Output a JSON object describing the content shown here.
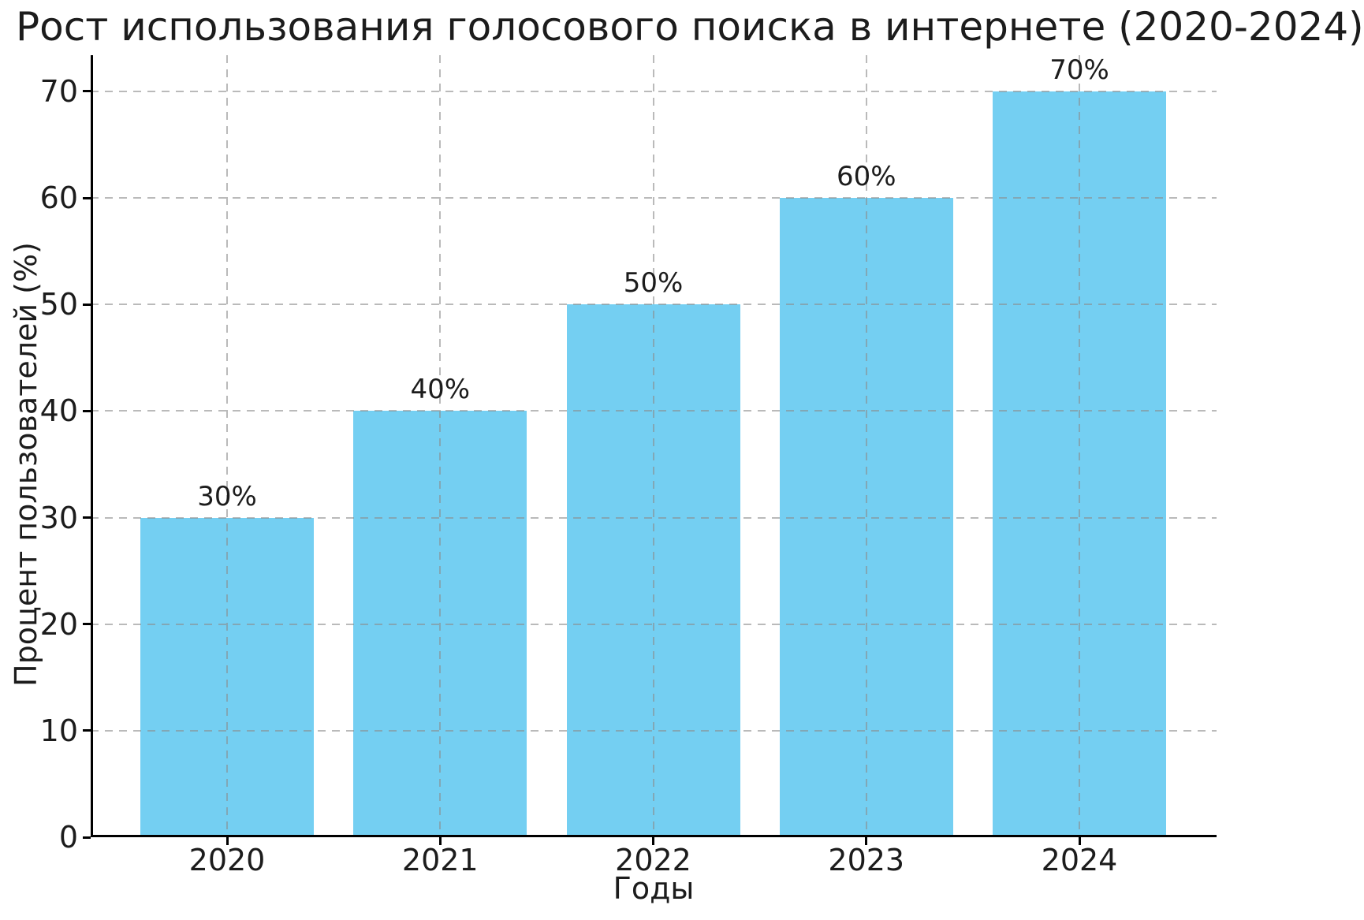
{
  "chart_data": {
    "type": "bar",
    "title": "Рост использования голосового поиска в интернете (2020-2024)",
    "xlabel": "Годы",
    "ylabel": "Процент пользователей (%)",
    "categories": [
      "2020",
      "2021",
      "2022",
      "2023",
      "2024"
    ],
    "values": [
      30,
      40,
      50,
      60,
      70
    ],
    "bar_labels": [
      "30%",
      "40%",
      "50%",
      "60%",
      "70%"
    ],
    "yticks": [
      0,
      10,
      20,
      30,
      40,
      50,
      60,
      70
    ],
    "ylim": [
      0,
      73.4
    ],
    "grid": "dashed gridlines on both axes, drawn above bars",
    "legend": "none",
    "colors": {
      "bar": "#74CFF2",
      "grid": "#8c8c8c",
      "text": "#1c1c1c",
      "axis": "#000000",
      "background": "#ffffff"
    }
  }
}
